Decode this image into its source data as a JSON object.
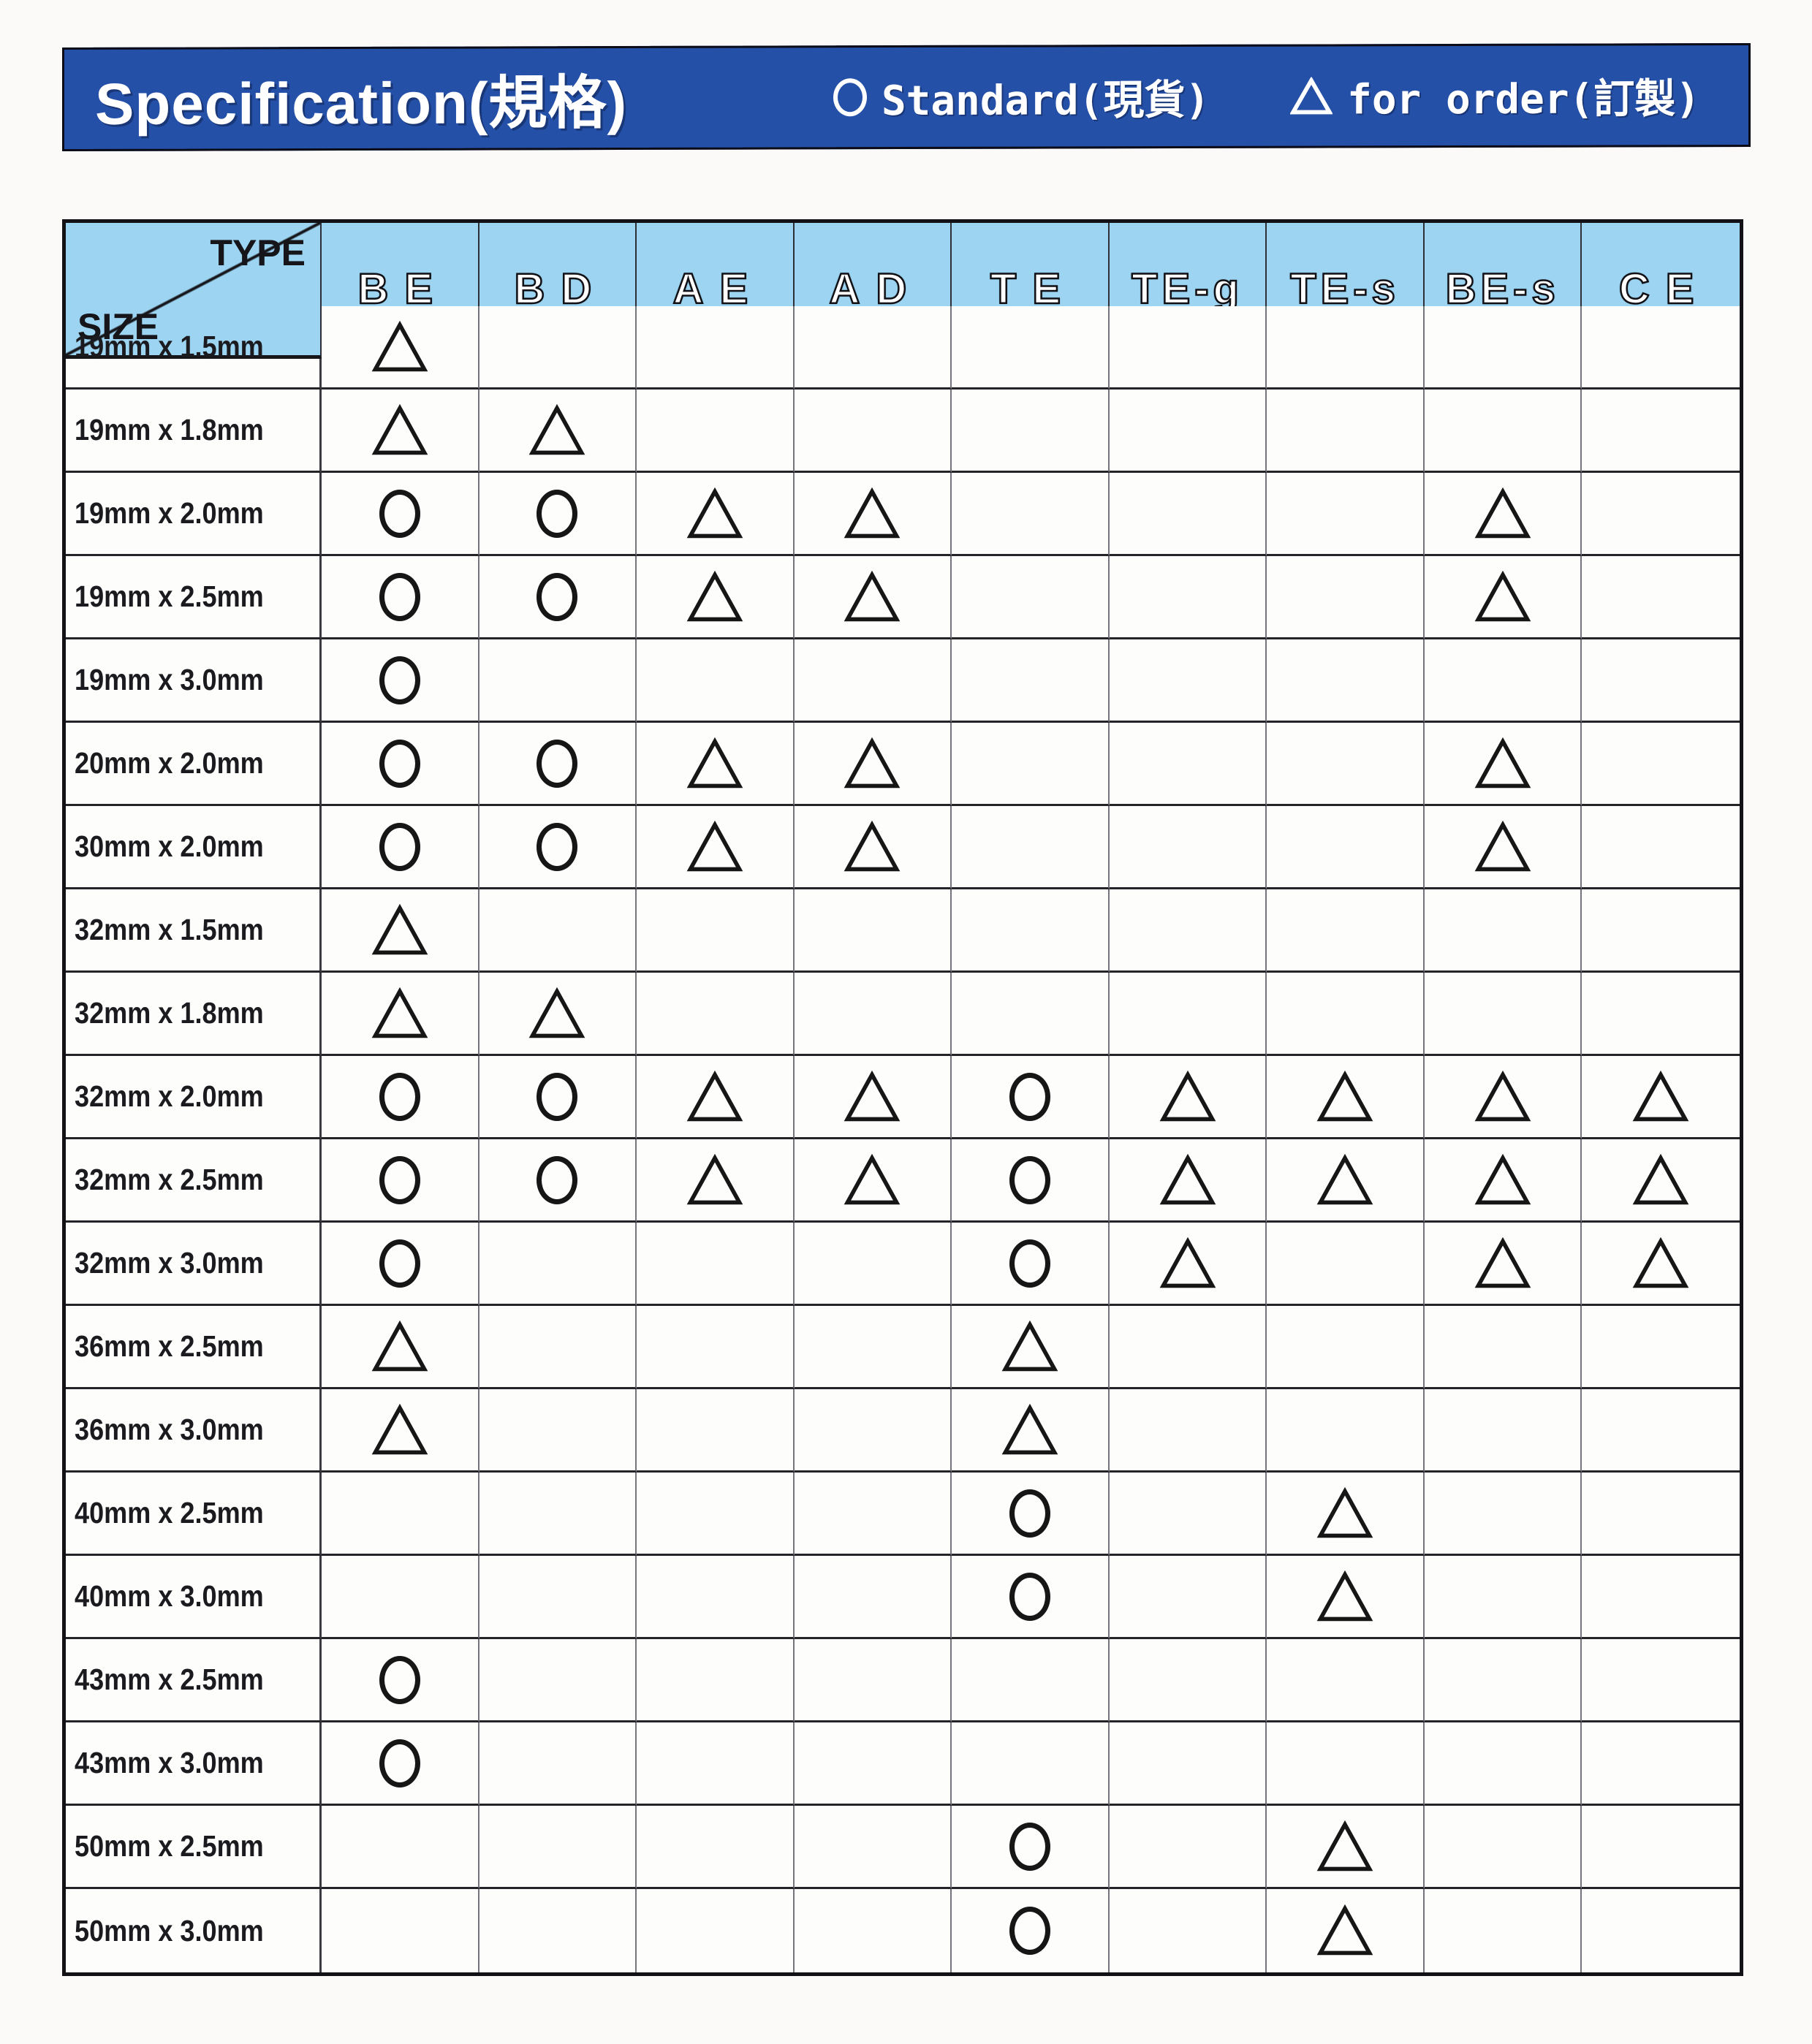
{
  "page": {
    "title_bar": {
      "title": "Specification(規格)",
      "legend": [
        {
          "symbol": "circle",
          "label": "Standard(現貨)"
        },
        {
          "symbol": "triangle",
          "label": "for order(訂製)"
        }
      ]
    },
    "colors": {
      "title_bar_blue": "#2450a8",
      "table_header_blue": "#9cd4f1",
      "line_black": "#15151a",
      "symbol_black": "#161616"
    }
  },
  "table": {
    "corner": {
      "type_label": "TYPE",
      "size_label": "SIZE"
    },
    "columns": [
      "BE",
      "BD",
      "AE",
      "AD",
      "TE",
      "TE-g",
      "TE-s",
      "BE-s",
      "CE"
    ],
    "symbol_key": {
      "O": "Standard(現貨) circle",
      "T": "for order(訂製) triangle",
      "": "empty"
    },
    "rows": [
      {
        "size": "19mm x 1.5mm",
        "cells": [
          "T",
          "",
          "",
          "",
          "",
          "",
          "",
          "",
          ""
        ]
      },
      {
        "size": "19mm x 1.8mm",
        "cells": [
          "T",
          "T",
          "",
          "",
          "",
          "",
          "",
          "",
          ""
        ]
      },
      {
        "size": "19mm x 2.0mm",
        "cells": [
          "O",
          "O",
          "T",
          "T",
          "",
          "",
          "",
          "T",
          ""
        ]
      },
      {
        "size": "19mm x 2.5mm",
        "cells": [
          "O",
          "O",
          "T",
          "T",
          "",
          "",
          "",
          "T",
          ""
        ]
      },
      {
        "size": "19mm x 3.0mm",
        "cells": [
          "O",
          "",
          "",
          "",
          "",
          "",
          "",
          "",
          ""
        ]
      },
      {
        "size": "20mm x 2.0mm",
        "cells": [
          "O",
          "O",
          "T",
          "T",
          "",
          "",
          "",
          "T",
          ""
        ]
      },
      {
        "size": "30mm x 2.0mm",
        "cells": [
          "O",
          "O",
          "T",
          "T",
          "",
          "",
          "",
          "T",
          ""
        ]
      },
      {
        "size": "32mm x 1.5mm",
        "cells": [
          "T",
          "",
          "",
          "",
          "",
          "",
          "",
          "",
          ""
        ]
      },
      {
        "size": "32mm x 1.8mm",
        "cells": [
          "T",
          "T",
          "",
          "",
          "",
          "",
          "",
          "",
          ""
        ]
      },
      {
        "size": "32mm x 2.0mm",
        "cells": [
          "O",
          "O",
          "T",
          "T",
          "O",
          "T",
          "T",
          "T",
          "T"
        ]
      },
      {
        "size": "32mm x 2.5mm",
        "cells": [
          "O",
          "O",
          "T",
          "T",
          "O",
          "T",
          "T",
          "T",
          "T"
        ]
      },
      {
        "size": "32mm x 3.0mm",
        "cells": [
          "O",
          "",
          "",
          "",
          "O",
          "T",
          "",
          "T",
          "T"
        ]
      },
      {
        "size": "36mm x 2.5mm",
        "cells": [
          "T",
          "",
          "",
          "",
          "T",
          "",
          "",
          "",
          ""
        ]
      },
      {
        "size": "36mm x 3.0mm",
        "cells": [
          "T",
          "",
          "",
          "",
          "T",
          "",
          "",
          "",
          ""
        ]
      },
      {
        "size": "40mm x 2.5mm",
        "cells": [
          "",
          "",
          "",
          "",
          "O",
          "",
          "T",
          "",
          ""
        ]
      },
      {
        "size": "40mm x 3.0mm",
        "cells": [
          "",
          "",
          "",
          "",
          "O",
          "",
          "T",
          "",
          ""
        ]
      },
      {
        "size": "43mm x 2.5mm",
        "cells": [
          "O",
          "",
          "",
          "",
          "",
          "",
          "",
          "",
          ""
        ]
      },
      {
        "size": "43mm x 3.0mm",
        "cells": [
          "O",
          "",
          "",
          "",
          "",
          "",
          "",
          "",
          ""
        ]
      },
      {
        "size": "50mm x 2.5mm",
        "cells": [
          "",
          "",
          "",
          "",
          "O",
          "",
          "T",
          "",
          ""
        ]
      },
      {
        "size": "50mm x 3.0mm",
        "cells": [
          "",
          "",
          "",
          "",
          "O",
          "",
          "T",
          "",
          ""
        ]
      }
    ]
  }
}
